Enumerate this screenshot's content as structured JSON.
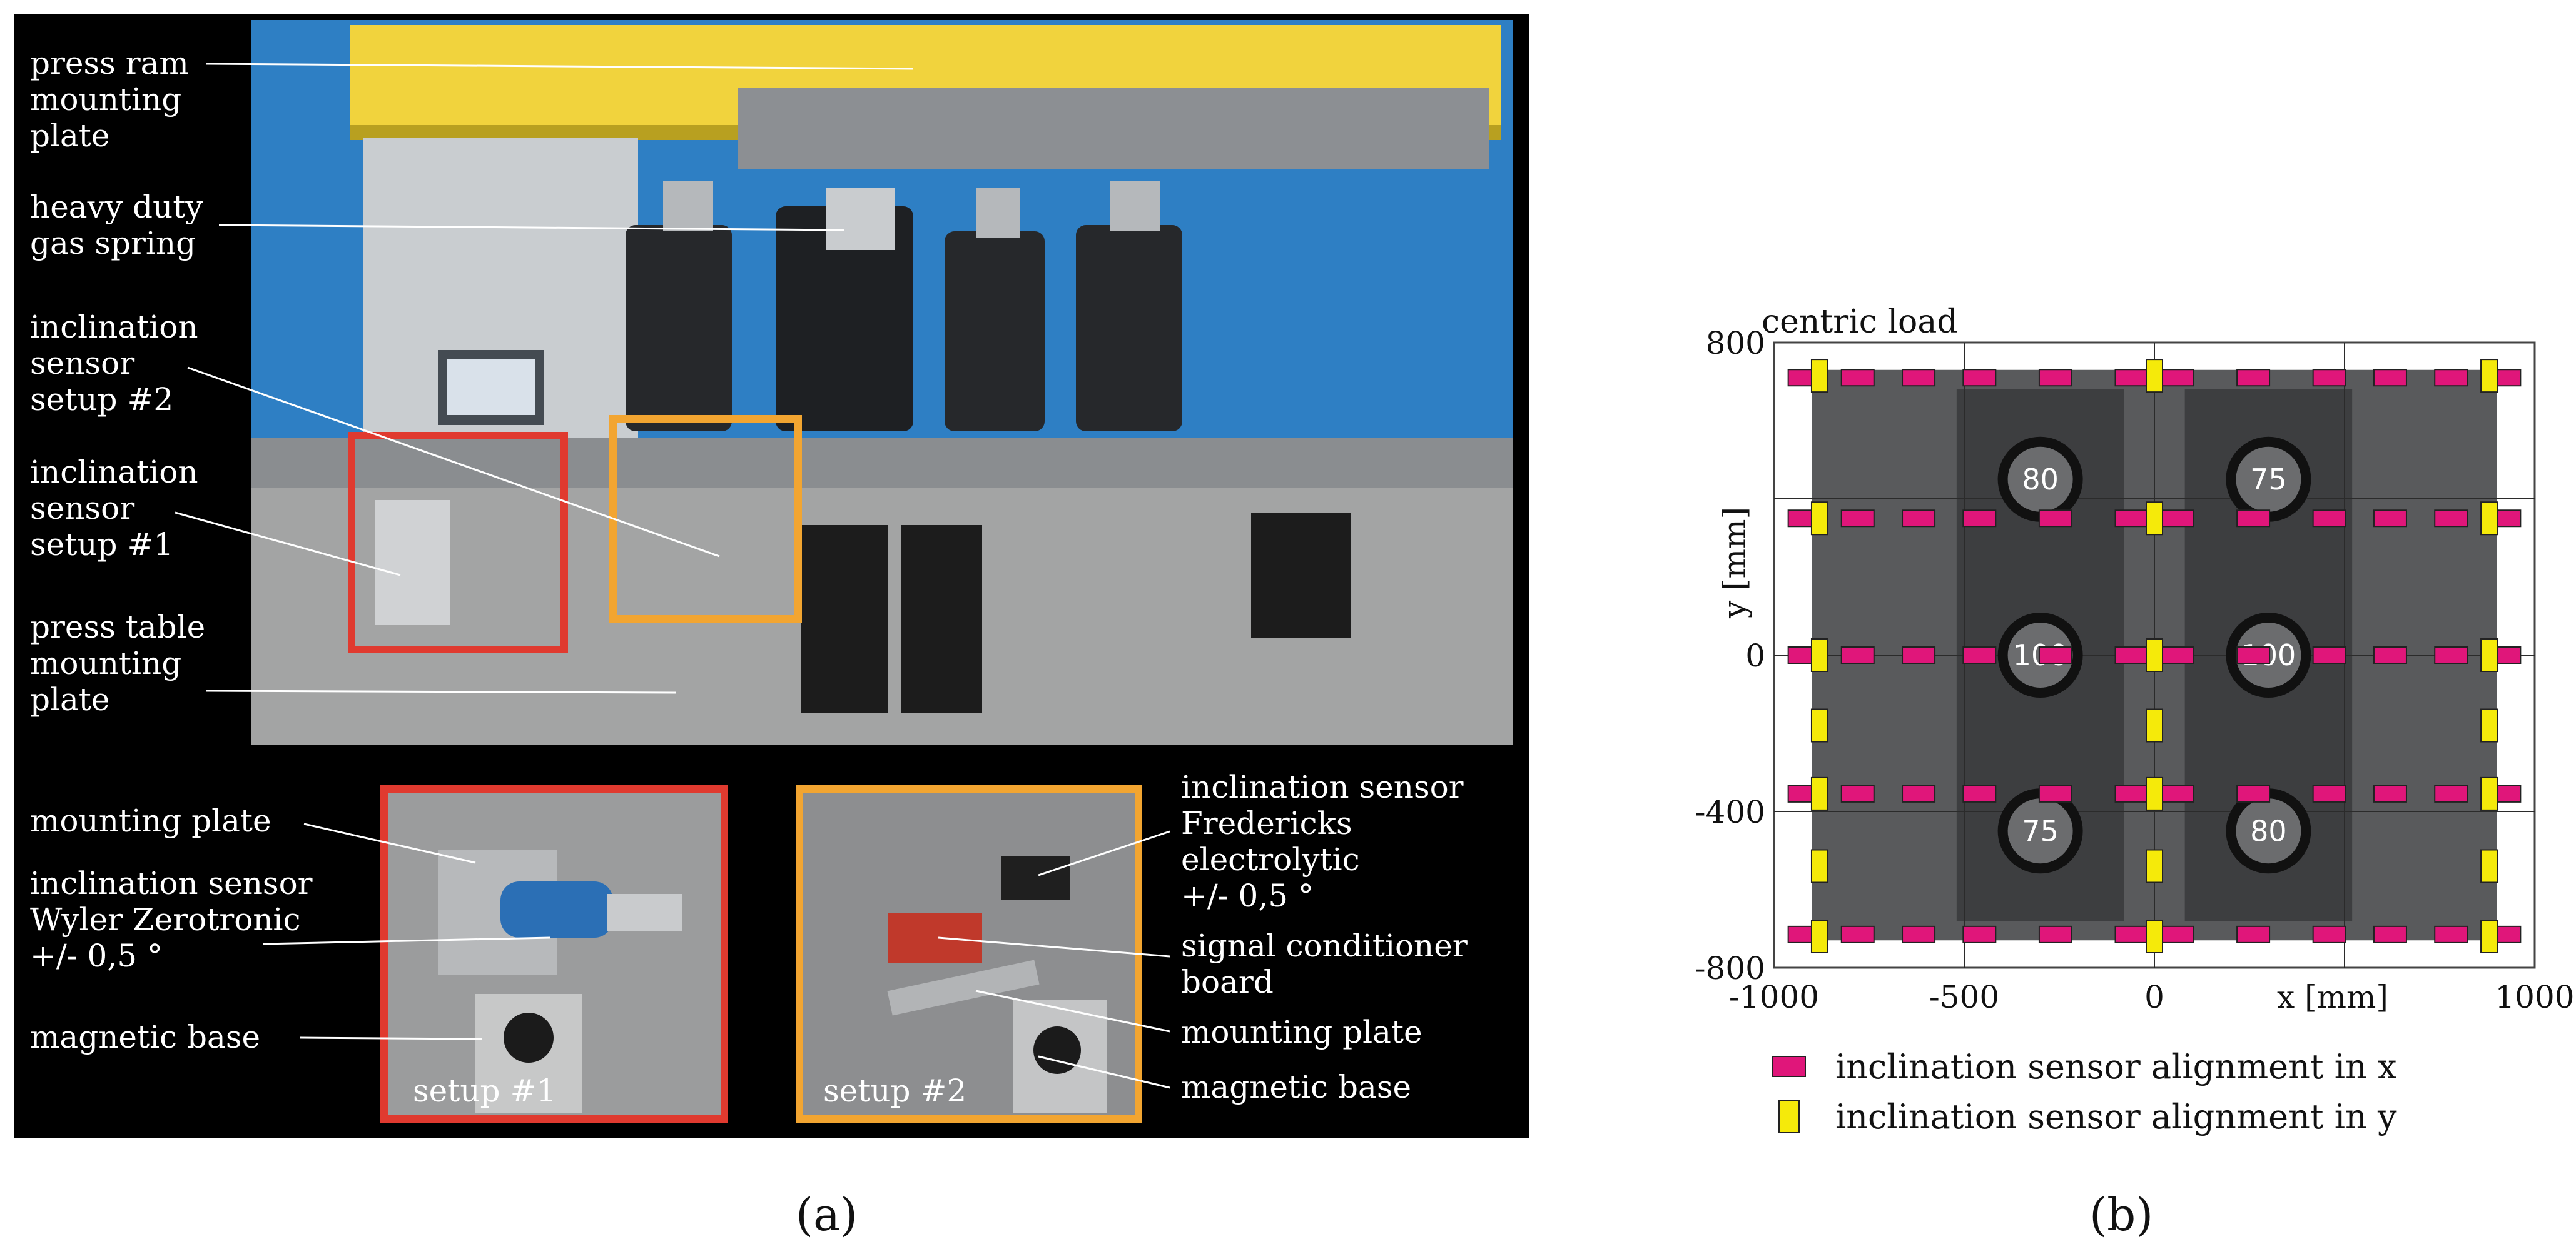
{
  "panel_a": {
    "caption": "(a)",
    "labels": {
      "press_ram": [
        "press ram",
        "mounting",
        "plate"
      ],
      "gas_spring": [
        "heavy duty",
        "gas spring"
      ],
      "setup2": [
        "inclination",
        "sensor",
        "setup #2"
      ],
      "setup1": [
        "inclination",
        "sensor",
        "setup #1"
      ],
      "press_table": [
        "press table",
        "mounting",
        "plate"
      ]
    },
    "inset1": {
      "tag": "setup #1",
      "mounting_plate": "mounting plate",
      "sensor": [
        "inclination sensor",
        "Wyler Zerotronic",
        "+/- 0,5 °"
      ],
      "magnetic_base": "magnetic base"
    },
    "inset2": {
      "tag": "setup #2",
      "sensor": [
        "inclination sensor",
        "Fredericks",
        "electrolytic",
        "+/- 0,5 °"
      ],
      "board": [
        "signal conditioner",
        "board"
      ],
      "mounting_plate": "mounting plate",
      "magnetic_base": "magnetic base"
    },
    "colors": {
      "setup1_frame": "#e03a2f",
      "setup2_frame": "#f2a531",
      "background": "#000000"
    }
  },
  "panel_b": {
    "caption": "(b)",
    "title": "centric load",
    "xlabel": "x [mm]",
    "ylabel": "y [mm]",
    "x_ticks": [
      "-1000",
      "-500",
      "0",
      "",
      "1000"
    ],
    "y_ticks": [
      "800",
      "",
      "0",
      "-400",
      "-800"
    ],
    "legend": [
      {
        "label": "inclination sensor alignment in x",
        "color": "#e0167a"
      },
      {
        "label": "inclination sensor alignment in y",
        "color": "#f5ea0a"
      }
    ],
    "plates": [
      {
        "label": "80"
      },
      {
        "label": "75"
      },
      {
        "label": "100"
      },
      {
        "label": "100"
      },
      {
        "label": "75"
      },
      {
        "label": "80"
      }
    ]
  },
  "chart_data": {
    "type": "scatter",
    "title": "centric load",
    "xlabel": "x [mm]",
    "ylabel": "y [mm]",
    "xlim": [
      -1000,
      1000
    ],
    "ylim": [
      -800,
      800
    ],
    "series": [
      {
        "name": "inclination sensor alignment in x",
        "color": "#e0167a",
        "x": [
          -920,
          -780,
          -620,
          -460,
          -260,
          -60,
          60,
          260,
          460,
          620,
          780,
          920,
          -920,
          -780,
          -620,
          -460,
          -260,
          -60,
          60,
          260,
          460,
          620,
          780,
          920,
          -920,
          -780,
          -620,
          -460,
          -260,
          -60,
          60,
          260,
          460,
          620,
          780,
          920,
          -920,
          -780,
          -620,
          -460,
          -260,
          -60,
          60,
          260,
          460,
          620,
          780,
          920,
          -920,
          -780,
          -620,
          -460,
          -260,
          -60,
          60,
          260,
          460,
          620,
          780,
          920
        ],
        "y": [
          710,
          710,
          710,
          710,
          710,
          710,
          710,
          710,
          710,
          710,
          710,
          710,
          350,
          350,
          350,
          350,
          350,
          350,
          350,
          350,
          350,
          350,
          350,
          350,
          0,
          0,
          0,
          0,
          0,
          0,
          0,
          0,
          0,
          0,
          0,
          0,
          -355,
          -355,
          -355,
          -355,
          -355,
          -355,
          -355,
          -355,
          -355,
          -355,
          -355,
          -355,
          -715,
          -715,
          -715,
          -715,
          -715,
          -715,
          -715,
          -715,
          -715,
          -715,
          -715,
          -715
        ]
      },
      {
        "name": "inclination sensor alignment in y",
        "color": "#f5ea0a",
        "x": [
          -880,
          -880,
          -880,
          -880,
          -880,
          -880,
          -880,
          0,
          0,
          0,
          0,
          0,
          0,
          0,
          880,
          880,
          880,
          880,
          880,
          880,
          880
        ],
        "y": [
          715,
          350,
          0,
          -180,
          -355,
          -540,
          -720,
          715,
          350,
          0,
          -180,
          -355,
          -540,
          -720,
          715,
          350,
          0,
          -180,
          -355,
          -540,
          -720
        ]
      }
    ],
    "plates": [
      {
        "x": -300,
        "y": 450,
        "label": "80"
      },
      {
        "x": 300,
        "y": 450,
        "label": "75"
      },
      {
        "x": -300,
        "y": 0,
        "label": "100"
      },
      {
        "x": 300,
        "y": 0,
        "label": "100"
      },
      {
        "x": -300,
        "y": -450,
        "label": "75"
      },
      {
        "x": 300,
        "y": -450,
        "label": "80"
      }
    ]
  }
}
